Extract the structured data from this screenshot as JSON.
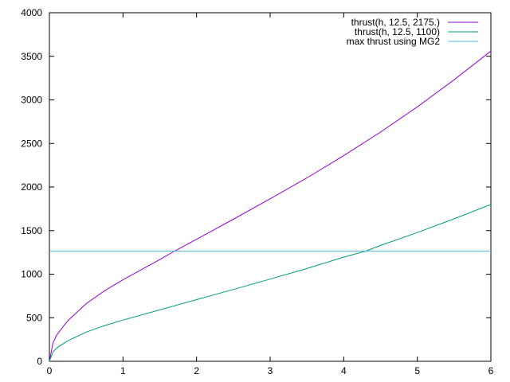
{
  "chart_data": {
    "type": "line",
    "title": "",
    "xlabel": "",
    "ylabel": "",
    "xlim": [
      0,
      6
    ],
    "ylim": [
      0,
      4000
    ],
    "grid": false,
    "legend_placement": "top-right",
    "x_ticks": [
      "0",
      "1",
      "2",
      "3",
      "4",
      "5",
      "6"
    ],
    "y_ticks": [
      "0",
      "500",
      "1000",
      "1500",
      "2000",
      "2500",
      "3000",
      "3500",
      "4000"
    ],
    "series": [
      {
        "name": "thrust(h, 12.5, 2175.)",
        "color": "#9400d3",
        "x": [
          0,
          0.05,
          0.1,
          0.25,
          0.5,
          0.75,
          1,
          1.5,
          1.7,
          2,
          2.5,
          3,
          3.5,
          4,
          4.5,
          5,
          5.5,
          6
        ],
        "values": [
          0,
          215,
          302,
          466,
          662,
          810,
          935,
          1167,
          1265,
          1400,
          1630,
          1865,
          2105,
          2360,
          2630,
          2920,
          3230,
          3560
        ]
      },
      {
        "name": "thrust(h, 12.5, 1100)",
        "color": "#009e73",
        "x": [
          0,
          0.05,
          0.1,
          0.25,
          0.5,
          0.75,
          1,
          1.5,
          2,
          2.5,
          3,
          3.5,
          4,
          4.3,
          4.5,
          5,
          5.5,
          6
        ],
        "values": [
          0,
          110,
          153,
          236,
          335,
          410,
          473,
          590,
          708,
          825,
          943,
          1065,
          1195,
          1265,
          1330,
          1478,
          1635,
          1800
        ]
      },
      {
        "name": "max thrust using MG2",
        "color": "#56b4e9",
        "x": [
          0,
          6
        ],
        "values": [
          1265,
          1265
        ]
      }
    ]
  }
}
